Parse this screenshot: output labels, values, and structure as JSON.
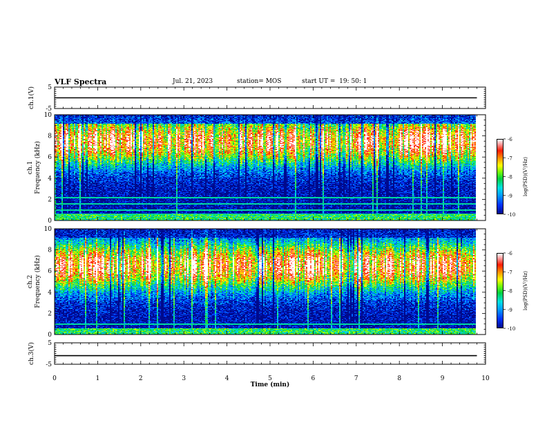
{
  "header": {
    "title": "VLF Spectra",
    "date": "Jul. 21, 2023",
    "station": "station= MOS",
    "start": "start UT =  19: 50: 1"
  },
  "colors": {
    "ch1_trace": "#000000",
    "ch3_trace": "#000000",
    "colormap": [
      "#000a8c",
      "#0033ff",
      "#00a0ff",
      "#00e0e0",
      "#00d040",
      "#80ff00",
      "#ffff00",
      "#ff9000",
      "#ff1a00",
      "#ffffff"
    ]
  },
  "chart_data": [
    {
      "type": "line",
      "name": "ch1-voltage",
      "ylabel": "ch.1(V)",
      "ylim": [
        -5,
        5
      ],
      "yticks": [
        "5",
        "-5"
      ],
      "xlim": [
        0,
        10
      ],
      "x": [
        0,
        9.8
      ],
      "y": [
        0,
        0
      ]
    },
    {
      "type": "heatmap",
      "name": "ch1-spectrogram",
      "ylabel": "ch.1 Frequency (kHz)",
      "ylim": [
        0,
        10
      ],
      "yticks": [
        "0",
        "2",
        "4",
        "6",
        "8",
        "10"
      ],
      "xlim": [
        0,
        9.8
      ],
      "band_center_khz": 7.5,
      "noise_lines_khz": [
        0.3,
        0.6,
        1.0,
        1.6,
        2.2
      ],
      "colorbar": {
        "label": "log(PSD)(V²/Hz)",
        "ticks": [
          "-6",
          "-7",
          "-8",
          "-9",
          "-10"
        ],
        "range": [
          -10,
          -6
        ]
      }
    },
    {
      "type": "heatmap",
      "name": "ch2-spectrogram",
      "ylabel": "ch.2 Frequency (kHz)",
      "ylim": [
        0,
        10
      ],
      "yticks": [
        "0",
        "2",
        "4",
        "6",
        "8",
        "10"
      ],
      "xlim": [
        0,
        9.8
      ],
      "band_center_khz": 6.5,
      "noise_lines_khz": [
        0.5,
        1.0
      ],
      "colorbar": {
        "label": "log(PSD)(V²/Hz)",
        "ticks": [
          "-6",
          "-7",
          "-8",
          "-9",
          "-10"
        ],
        "range": [
          -10,
          -6
        ]
      }
    },
    {
      "type": "line",
      "name": "ch3-voltage",
      "ylabel": "ch.3(V)",
      "ylim": [
        -5,
        5
      ],
      "yticks": [
        "5",
        "-5"
      ],
      "xlim": [
        0,
        10
      ],
      "x": [
        0,
        9.8
      ],
      "y": [
        -1,
        -1
      ]
    }
  ],
  "xaxis": {
    "label": "Time (min)",
    "ticks": [
      "0",
      "1",
      "2",
      "3",
      "4",
      "5",
      "6",
      "7",
      "8",
      "9",
      "10"
    ],
    "range": [
      0,
      10
    ]
  }
}
